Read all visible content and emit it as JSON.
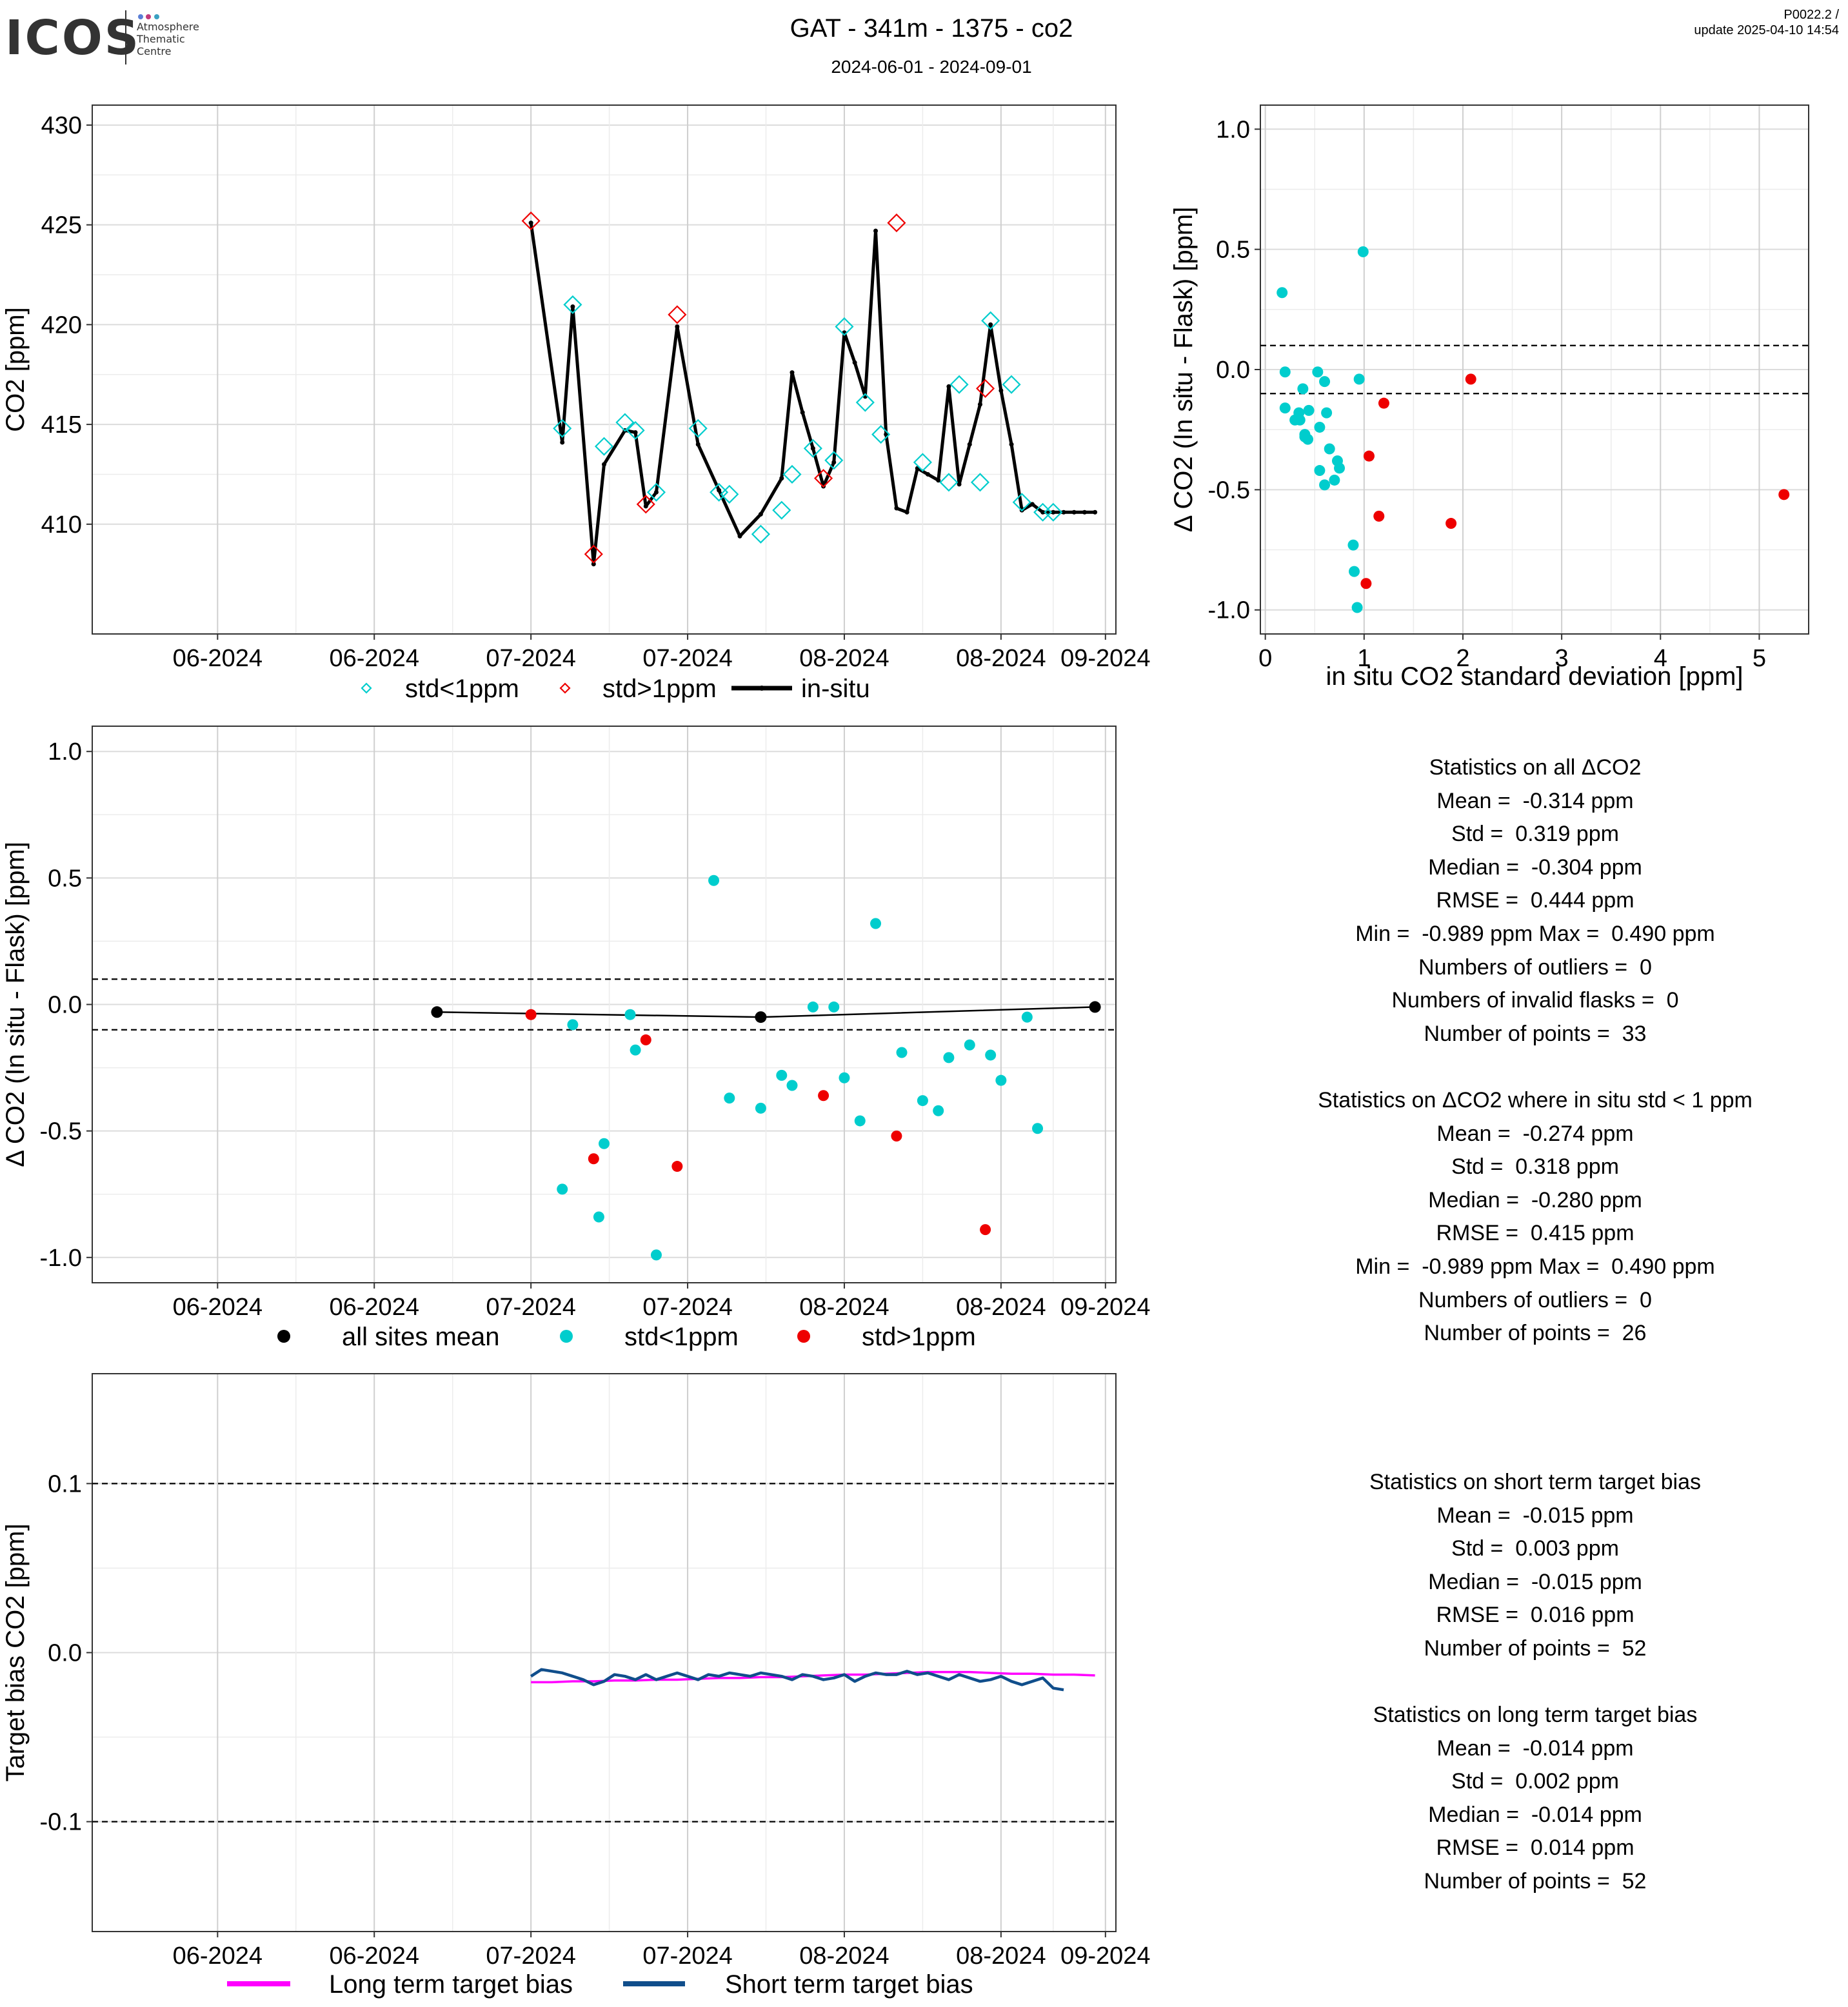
{
  "header": {
    "logo": "ICOS",
    "logo_subtitle": [
      "Atmosphere",
      "Thematic",
      "Centre"
    ],
    "title": "GAT - 341m - 1375 - co2",
    "subtitle": "2024-06-01 - 2024-09-01",
    "version": "P0022.2 /",
    "update": "update  2025-04-10 14:54"
  },
  "colors": {
    "std_lt_1": "#00CDCD",
    "std_gt_1": "#EE0000",
    "in_situ": "#000000",
    "long_term": "#FF00FF",
    "short_term": "#104E8B",
    "grid": "#d9d9d9"
  },
  "chart_data": [
    {
      "id": "timeseries",
      "type": "line",
      "ylabel": "CO2 [ppm]",
      "xlabel": "",
      "ylim": [
        404.5,
        431
      ],
      "yticks": [
        410,
        415,
        420,
        425,
        430
      ],
      "xticks": [
        "06-2024",
        "06-2024",
        "07-2024",
        "07-2024",
        "08-2024",
        "08-2024",
        "09-2024"
      ],
      "legend": [
        "std<1ppm",
        "std>1ppm",
        "in-situ"
      ],
      "legend_position": "bottom",
      "grid": true,
      "series": [
        {
          "name": "in-situ",
          "x": [
            38.0,
            41.0,
            42.0,
            44.0,
            45.0,
            47.0,
            48.0,
            49.0,
            50.0,
            52.0,
            54.0,
            56.0,
            58.0,
            60.0,
            62.0,
            63.0,
            64.0,
            65.0,
            66.0,
            67.0,
            68.0,
            69.0,
            70.0,
            71.0,
            72.0,
            73.0,
            74.0,
            75.0,
            76.0,
            77.0,
            78.0,
            79.0,
            80.0,
            81.0,
            82.0,
            83.0,
            84.0,
            85.0,
            86.0,
            87.0,
            88.0,
            89.0,
            90.0,
            91.0,
            92.0
          ],
          "y": [
            425.1,
            414.1,
            420.9,
            408.0,
            413.0,
            414.7,
            414.6,
            410.9,
            411.6,
            419.9,
            414.0,
            411.7,
            409.4,
            410.5,
            412.3,
            417.6,
            415.6,
            413.8,
            411.9,
            413.1,
            419.6,
            418.1,
            416.4,
            424.7,
            414.5,
            410.8,
            410.6,
            412.8,
            412.5,
            412.2,
            416.9,
            412.0,
            414.0,
            416.0,
            420.0,
            416.7,
            414.0,
            410.7,
            411.0,
            410.6,
            410.6,
            410.6,
            410.6,
            410.6,
            410.6
          ]
        },
        {
          "name": "std<1ppm",
          "x": [
            41.0,
            42.0,
            45.0,
            47.0,
            48.0,
            50.0,
            54.0,
            56.0,
            57.0,
            60.0,
            62.0,
            63.0,
            65.0,
            67.0,
            68.0,
            70.0,
            71.5,
            75.5,
            78.0,
            79.0,
            81.0,
            82.0,
            84.0,
            85.0,
            87.0,
            88.0
          ],
          "y": [
            414.8,
            421.0,
            413.9,
            415.1,
            414.7,
            411.6,
            414.8,
            411.6,
            411.5,
            409.5,
            410.7,
            412.5,
            413.8,
            413.2,
            419.9,
            416.1,
            414.5,
            413.1,
            412.1,
            417.0,
            412.1,
            420.2,
            417.0,
            411.1,
            410.6,
            410.6
          ]
        },
        {
          "name": "std>1ppm",
          "x": [
            38.0,
            44.0,
            49.0,
            52.0,
            66.0,
            73.0,
            81.5
          ],
          "y": [
            425.2,
            408.5,
            411.0,
            420.5,
            412.3,
            425.1,
            416.8
          ]
        }
      ]
    },
    {
      "id": "scatter_std",
      "type": "scatter",
      "xlabel": "in situ CO2 standard deviation [ppm]",
      "ylabel": "Δ CO2 (In situ - Flask) [ppm]",
      "xlim": [
        -0.05,
        5.5
      ],
      "ylim": [
        -1.1,
        1.1
      ],
      "xticks": [
        0,
        1,
        2,
        3,
        4,
        5
      ],
      "yticks": [
        -1.0,
        -0.5,
        0.0,
        0.5,
        1.0
      ],
      "reference_lines": [
        0.1,
        -0.1
      ],
      "grid": true,
      "series": [
        {
          "name": "std<1ppm",
          "x": [
            0.17,
            0.2,
            0.99,
            0.53,
            0.44,
            0.2,
            0.55,
            0.38,
            0.62,
            0.95,
            0.6,
            0.34,
            0.3,
            0.4,
            0.35,
            0.4,
            0.43,
            0.65,
            0.73,
            0.75,
            0.6,
            0.55,
            0.7,
            0.89,
            0.9,
            0.93
          ],
          "y": [
            0.32,
            -0.01,
            0.49,
            -0.01,
            -0.17,
            -0.16,
            -0.24,
            -0.08,
            -0.18,
            -0.04,
            -0.05,
            -0.18,
            -0.21,
            -0.28,
            -0.21,
            -0.27,
            -0.29,
            -0.33,
            -0.38,
            -0.41,
            -0.48,
            -0.42,
            -0.46,
            -0.73,
            -0.84,
            -0.99
          ]
        },
        {
          "name": "std>1ppm",
          "x": [
            2.08,
            1.2,
            1.05,
            1.15,
            1.88,
            1.02,
            5.25
          ],
          "y": [
            -0.04,
            -0.14,
            -0.36,
            -0.61,
            -0.64,
            -0.89,
            -0.52
          ]
        }
      ]
    },
    {
      "id": "delta_timeseries",
      "type": "scatter",
      "ylabel": "Δ CO2 (In situ - Flask) [ppm]",
      "xlabel": "",
      "ylim": [
        -1.1,
        1.1
      ],
      "yticks": [
        -1.0,
        -0.5,
        0.0,
        0.5,
        1.0
      ],
      "xticks": [
        "06-2024",
        "06-2024",
        "07-2024",
        "07-2024",
        "08-2024",
        "08-2024",
        "09-2024"
      ],
      "reference_lines": [
        0.1,
        -0.1
      ],
      "legend": [
        "all sites mean",
        "std<1ppm",
        "std>1ppm"
      ],
      "legend_position": "bottom",
      "grid": true,
      "series": [
        {
          "name": "all sites mean",
          "x": [
            29.0,
            60.0,
            92.0
          ],
          "y": [
            -0.03,
            -0.05,
            -0.01
          ]
        },
        {
          "name": "std<1ppm",
          "x": [
            41.0,
            42.0,
            44.5,
            45.0,
            47.5,
            48.0,
            50.0,
            55.5,
            57.0,
            60.0,
            62.0,
            63.0,
            65.0,
            67.0,
            68.0,
            69.5,
            71.0,
            73.5,
            75.5,
            77.0,
            78.0,
            80.0,
            82.0,
            83.0,
            85.5,
            86.5
          ],
          "y": [
            -0.73,
            -0.08,
            -0.84,
            -0.55,
            -0.04,
            -0.18,
            -0.99,
            0.49,
            -0.37,
            -0.41,
            -0.28,
            -0.32,
            -0.01,
            -0.01,
            -0.29,
            -0.46,
            0.32,
            -0.19,
            -0.38,
            -0.42,
            -0.21,
            -0.16,
            -0.2,
            -0.3,
            -0.05,
            -0.49
          ]
        },
        {
          "name": "std>1ppm",
          "x": [
            38.0,
            44.0,
            49.0,
            52.0,
            66.0,
            73.0,
            81.5
          ],
          "y": [
            -0.04,
            -0.61,
            -0.14,
            -0.64,
            -0.36,
            -0.52,
            -0.89
          ]
        }
      ]
    },
    {
      "id": "target_bias",
      "type": "line",
      "ylabel": "Target bias CO2 [ppm]",
      "xlabel": "",
      "ylim": [
        -0.165,
        0.165
      ],
      "yticks": [
        -0.1,
        0.0,
        0.1
      ],
      "xticks": [
        "06-2024",
        "06-2024",
        "07-2024",
        "07-2024",
        "08-2024",
        "08-2024",
        "09-2024"
      ],
      "reference_lines": [
        0.1,
        -0.1
      ],
      "legend": [
        "Long term target bias",
        "Short term target bias"
      ],
      "legend_position": "bottom",
      "grid": true,
      "series": [
        {
          "name": "Long term target bias",
          "x": [
            38,
            40,
            42,
            44,
            46,
            48,
            50,
            52,
            54,
            56,
            58,
            60,
            62,
            64,
            66,
            68,
            70,
            72,
            74,
            76,
            78,
            80,
            82,
            84,
            86,
            88,
            90,
            92
          ],
          "y": [
            -0.0175,
            -0.0175,
            -0.017,
            -0.017,
            -0.0165,
            -0.0165,
            -0.016,
            -0.016,
            -0.0155,
            -0.015,
            -0.015,
            -0.0145,
            -0.0145,
            -0.014,
            -0.0135,
            -0.013,
            -0.013,
            -0.0125,
            -0.012,
            -0.0115,
            -0.0115,
            -0.0115,
            -0.012,
            -0.0125,
            -0.0125,
            -0.013,
            -0.013,
            -0.0135
          ]
        },
        {
          "name": "Short term target bias",
          "x": [
            38,
            39,
            40,
            41,
            42,
            43,
            44,
            45,
            46,
            47,
            48,
            49,
            50,
            51,
            52,
            53,
            54,
            55,
            56,
            57,
            58,
            59,
            60,
            61,
            62,
            63,
            64,
            65,
            66,
            67,
            68,
            69,
            70,
            71,
            72,
            73,
            74,
            75,
            76,
            77,
            78,
            79,
            80,
            81,
            82,
            83,
            84,
            85,
            86,
            87,
            88,
            89
          ],
          "y": [
            -0.014,
            -0.01,
            -0.011,
            -0.012,
            -0.014,
            -0.016,
            -0.019,
            -0.017,
            -0.013,
            -0.014,
            -0.016,
            -0.013,
            -0.016,
            -0.014,
            -0.012,
            -0.014,
            -0.016,
            -0.013,
            -0.014,
            -0.012,
            -0.013,
            -0.014,
            -0.012,
            -0.013,
            -0.014,
            -0.016,
            -0.013,
            -0.014,
            -0.016,
            -0.015,
            -0.013,
            -0.017,
            -0.014,
            -0.012,
            -0.013,
            -0.013,
            -0.011,
            -0.013,
            -0.012,
            -0.014,
            -0.016,
            -0.013,
            -0.015,
            -0.017,
            -0.016,
            -0.014,
            -0.017,
            -0.019,
            -0.017,
            -0.015,
            -0.021,
            -0.022
          ]
        }
      ]
    }
  ],
  "stats": {
    "delta_all": {
      "title": "Statistics on all ΔCO2",
      "lines": [
        "Mean =  -0.314 ppm",
        "Std =  0.319 ppm",
        "Median =  -0.304 ppm",
        "RMSE =  0.444 ppm",
        "Min =  -0.989 ppm Max =  0.490 ppm",
        "Numbers of outliers =  0",
        "Numbers of invalid flasks =  0",
        "Number of points =  33"
      ]
    },
    "delta_std_lt_1": {
      "title": "Statistics on ΔCO2 where in situ std < 1 ppm",
      "lines": [
        "Mean =  -0.274 ppm",
        "Std =  0.318 ppm",
        "Median =  -0.280 ppm",
        "RMSE =  0.415 ppm",
        "Min =  -0.989 ppm Max =  0.490 ppm",
        "Numbers of outliers =  0",
        "Number of points =  26"
      ]
    },
    "short_term": {
      "title": "Statistics on short term target bias",
      "lines": [
        "Mean =  -0.015 ppm",
        "Std =  0.003 ppm",
        "Median =  -0.015 ppm",
        "RMSE =  0.016 ppm",
        "Number of points =  52"
      ]
    },
    "long_term": {
      "title": "Statistics on long term target bias",
      "lines": [
        "Mean =  -0.014 ppm",
        "Std =  0.002 ppm",
        "Median =  -0.014 ppm",
        "RMSE =  0.014 ppm",
        "Number of points =  52"
      ]
    }
  }
}
